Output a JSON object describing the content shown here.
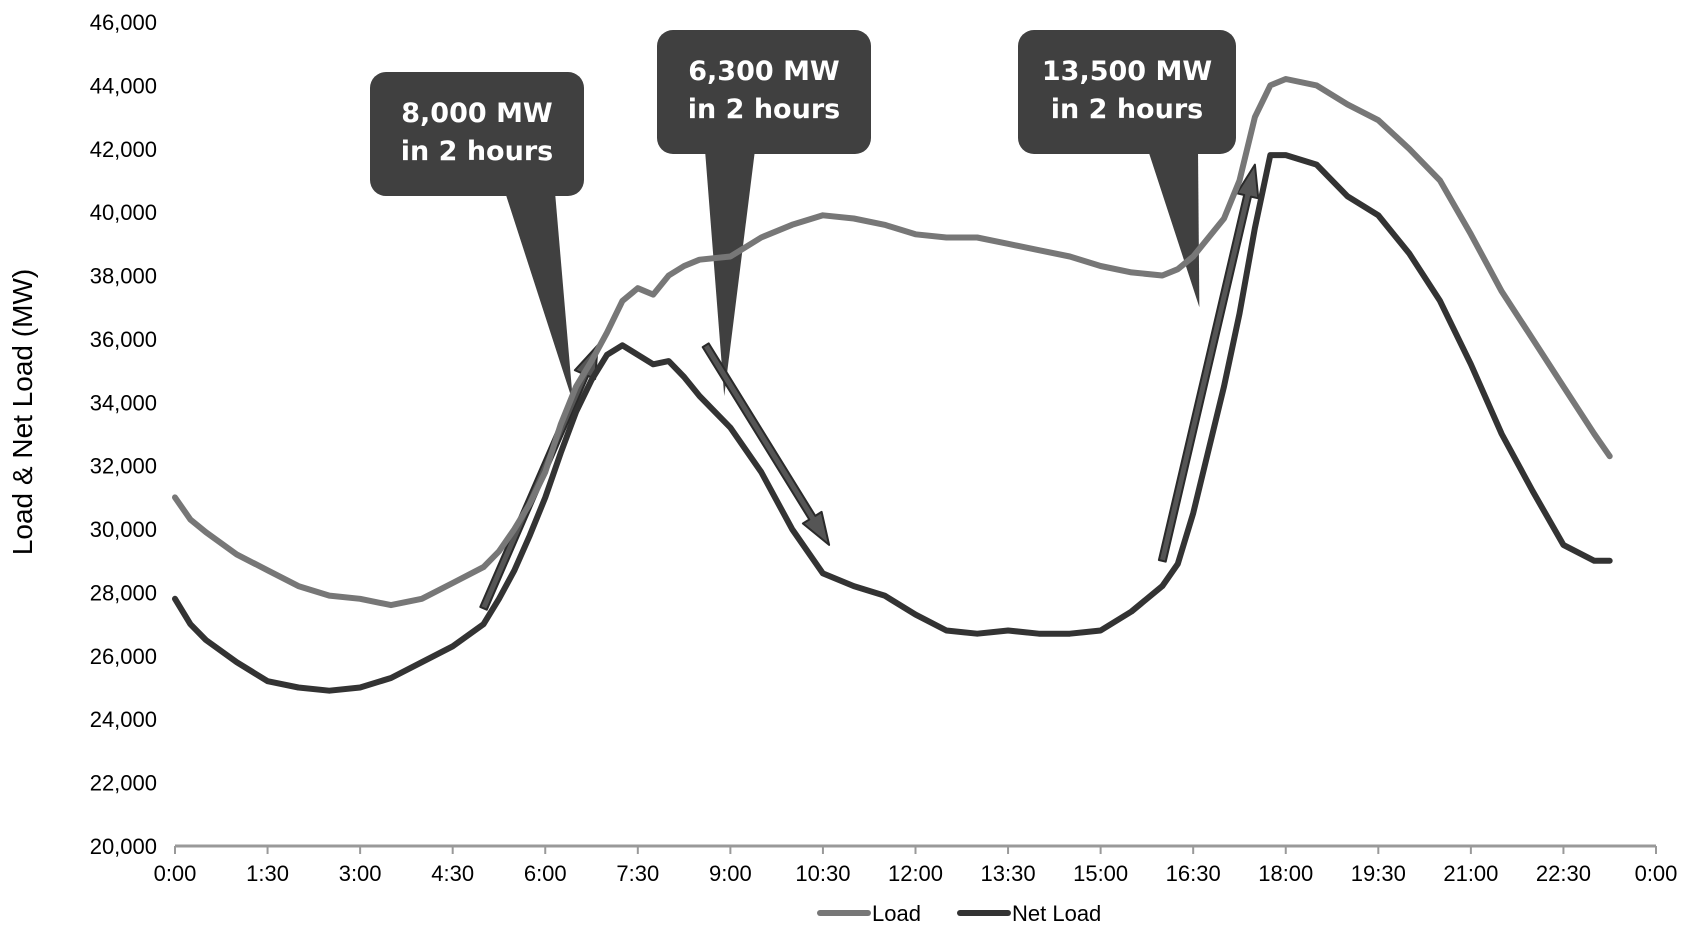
{
  "chart_data": {
    "type": "line",
    "title": "",
    "xlabel": "",
    "ylabel": "Load & Net Load (MW)",
    "ylim": [
      20000,
      46000
    ],
    "xlim_hours": [
      0,
      24
    ],
    "y_ticks": [
      "20,000",
      "22,000",
      "24,000",
      "26,000",
      "28,000",
      "30,000",
      "32,000",
      "34,000",
      "36,000",
      "38,000",
      "40,000",
      "42,000",
      "44,000",
      "46,000"
    ],
    "x_ticks": [
      "0:00",
      "1:30",
      "3:00",
      "4:30",
      "6:00",
      "7:30",
      "9:00",
      "10:30",
      "12:00",
      "13:30",
      "15:00",
      "16:30",
      "18:00",
      "19:30",
      "21:00",
      "22:30",
      "0:00"
    ],
    "grid": false,
    "legend_position": "bottom",
    "series": [
      {
        "name": "Load",
        "color": "#777777",
        "x": [
          0,
          0.25,
          0.5,
          1,
          1.5,
          2,
          2.5,
          3,
          3.5,
          4,
          4.5,
          5,
          5.25,
          5.5,
          5.75,
          6,
          6.25,
          6.5,
          6.75,
          7,
          7.25,
          7.5,
          7.75,
          8,
          8.25,
          8.5,
          9,
          9.5,
          10,
          10.5,
          11,
          11.5,
          12,
          12.5,
          13,
          13.5,
          14,
          14.5,
          15,
          15.5,
          16,
          16.25,
          16.5,
          16.75,
          17,
          17.25,
          17.5,
          17.75,
          18,
          18.5,
          19,
          19.5,
          20,
          20.5,
          21,
          21.5,
          22,
          22.5,
          23,
          23.25
        ],
        "values": [
          31000,
          30300,
          29900,
          29200,
          28700,
          28200,
          27900,
          27800,
          27600,
          27800,
          28300,
          28800,
          29300,
          30000,
          30800,
          31800,
          33300,
          34500,
          35300,
          36200,
          37200,
          37600,
          37400,
          38000,
          38300,
          38500,
          38600,
          39200,
          39600,
          39900,
          39800,
          39600,
          39300,
          39200,
          39200,
          39000,
          38800,
          38600,
          38300,
          38100,
          38000,
          38200,
          38600,
          39200,
          39800,
          41000,
          43000,
          44000,
          44200,
          44000,
          43400,
          42900,
          42000,
          41000,
          39300,
          37500,
          36000,
          34500,
          33000,
          32300
        ]
      },
      {
        "name": "Net Load",
        "color": "#333333",
        "x": [
          0,
          0.25,
          0.5,
          1,
          1.5,
          2,
          2.5,
          3,
          3.5,
          4,
          4.5,
          5,
          5.25,
          5.5,
          5.75,
          6,
          6.25,
          6.5,
          6.75,
          7,
          7.25,
          7.5,
          7.75,
          8,
          8.25,
          8.5,
          9,
          9.5,
          10,
          10.5,
          11,
          11.5,
          12,
          12.5,
          13,
          13.5,
          14,
          14.5,
          15,
          15.5,
          16,
          16.25,
          16.5,
          16.75,
          17,
          17.25,
          17.5,
          17.75,
          18,
          18.5,
          19,
          19.5,
          20,
          20.5,
          21,
          21.5,
          22,
          22.5,
          23,
          23.25
        ],
        "values": [
          27800,
          27000,
          26500,
          25800,
          25200,
          25000,
          24900,
          25000,
          25300,
          25800,
          26300,
          27000,
          27800,
          28700,
          29800,
          31000,
          32400,
          33700,
          34700,
          35500,
          35800,
          35500,
          35200,
          35300,
          34800,
          34200,
          33200,
          31800,
          30000,
          28600,
          28200,
          27900,
          27300,
          26800,
          26700,
          26800,
          26700,
          26700,
          26800,
          27400,
          28200,
          28900,
          30500,
          32500,
          34500,
          36800,
          39500,
          41800,
          41800,
          41500,
          40500,
          39900,
          38700,
          37200,
          35200,
          33000,
          31200,
          29500,
          29000,
          29000
        ]
      }
    ],
    "annotations": [
      {
        "line1": "8,000 MW",
        "line2": "in 2 hours"
      },
      {
        "line1": "6,300 MW",
        "line2": "in 2 hours"
      },
      {
        "line1": "13,500 MW",
        "line2": "in 2 hours"
      }
    ],
    "ramp_arrows": [
      {
        "from": {
          "x": 5.0,
          "y": 27500
        },
        "to": {
          "x": 6.85,
          "y": 35800
        }
      },
      {
        "from": {
          "x": 8.6,
          "y": 35800
        },
        "to": {
          "x": 10.6,
          "y": 29500
        }
      },
      {
        "from": {
          "x": 16.0,
          "y": 29000
        },
        "to": {
          "x": 17.5,
          "y": 41500
        }
      }
    ],
    "callouts": [
      {
        "pointer": {
          "x": 6.45,
          "y": 34000
        }
      },
      {
        "pointer": {
          "x": 8.9,
          "y": 34200
        }
      },
      {
        "pointer": {
          "x": 16.6,
          "y": 37000
        }
      }
    ],
    "colors": {
      "load": "#777777",
      "net_load": "#333333",
      "axis": "#999999",
      "callout_fill": "#404040",
      "arrow_fill": "#555555"
    }
  }
}
